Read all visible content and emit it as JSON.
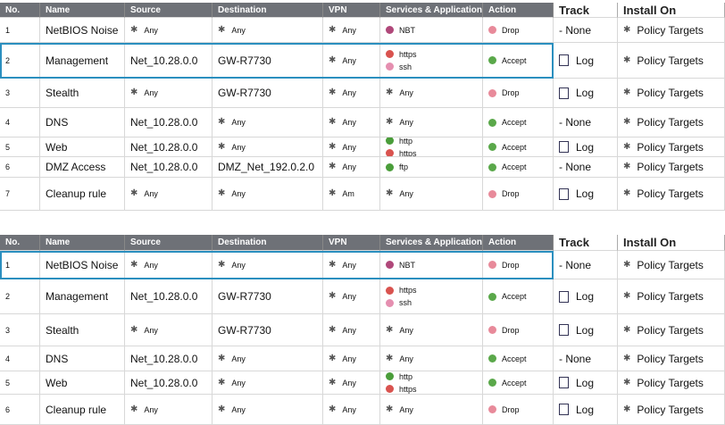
{
  "tables": [
    {
      "headers": [
        "No.",
        "Name",
        "Source",
        "Destination",
        "VPN",
        "Services & Applications",
        "Action",
        "Track",
        "Install On"
      ],
      "rows": [
        {
          "no": "1",
          "name": "NetBIOS Noise",
          "source": "Any",
          "destination": "Any",
          "vpn": "Any",
          "services": [
            "NBT"
          ],
          "action": "Drop",
          "track": "- None",
          "install_on": "Policy Targets"
        },
        {
          "no": "2",
          "name": "Management",
          "source": "Net_10.28.0.0",
          "destination": "GW-R7730",
          "vpn": "Any",
          "services": [
            "https",
            "ssh"
          ],
          "action": "Accept",
          "track": "Log",
          "install_on": "Policy Targets"
        },
        {
          "no": "3",
          "name": "Stealth",
          "source": "Any",
          "destination": "GW-R7730",
          "vpn": "Any",
          "services": [
            "Any"
          ],
          "action": "Drop",
          "track": "Log",
          "install_on": "Policy Targets"
        },
        {
          "no": "4",
          "name": "DNS",
          "source": "Net_10.28.0.0",
          "destination": "Any",
          "vpn": "Any",
          "services": [
            "Any"
          ],
          "action": "Accept",
          "track": "- None",
          "install_on": "Policy Targets"
        },
        {
          "no": "5",
          "name": "Web",
          "source": "Net_10.28.0.0",
          "destination": "Any",
          "vpn": "Any",
          "services": [
            "http",
            "https"
          ],
          "action": "Accept",
          "track": "Log",
          "install_on": "Policy Targets"
        },
        {
          "no": "6",
          "name": "DMZ Access",
          "source": "Net_10.28.0.0",
          "destination": "DMZ_Net_192.0.2.0",
          "vpn": "Any",
          "services": [
            "ftp"
          ],
          "action": "Accept",
          "track": "- None",
          "install_on": "Policy Targets"
        },
        {
          "no": "7",
          "name": "Cleanup rule",
          "source": "Any",
          "destination": "Any",
          "vpn": "Am",
          "services": [
            "Any"
          ],
          "action": "Drop",
          "track": "Log",
          "install_on": "Policy Targets"
        }
      ]
    },
    {
      "headers": [
        "No.",
        "Name",
        "Source",
        "Destination",
        "VPN",
        "Services & Applications",
        "Action",
        "Track",
        "Install On"
      ],
      "rows": [
        {
          "no": "1",
          "name": "NetBIOS Noise",
          "source": "Any",
          "destination": "Any",
          "vpn": "Any",
          "services": [
            "NBT"
          ],
          "action": "Drop",
          "track": "- None",
          "install_on": "Policy Targets"
        },
        {
          "no": "2",
          "name": "Management",
          "source": "Net_10.28.0.0",
          "destination": "GW-R7730",
          "vpn": "Any",
          "services": [
            "https",
            "ssh"
          ],
          "action": "Accept",
          "track": "Log",
          "install_on": "Policy Targets"
        },
        {
          "no": "3",
          "name": "Stealth",
          "source": "Any",
          "destination": "GW-R7730",
          "vpn": "Any",
          "services": [
            "Any"
          ],
          "action": "Drop",
          "track": "Log",
          "install_on": "Policy Targets"
        },
        {
          "no": "4",
          "name": "DNS",
          "source": "Net_10.28.0.0",
          "destination": "Any",
          "vpn": "Any",
          "services": [
            "Any"
          ],
          "action": "Accept",
          "track": "- None",
          "install_on": "Policy Targets"
        },
        {
          "no": "5",
          "name": "Web",
          "source": "Net_10.28.0.0",
          "destination": "Any",
          "vpn": "Any",
          "services": [
            "http",
            "https"
          ],
          "action": "Accept",
          "track": "Log",
          "install_on": "Policy Targets"
        },
        {
          "no": "6",
          "name": "Cleanup rule",
          "source": "Any",
          "destination": "Any",
          "vpn": "Any",
          "services": [
            "Any"
          ],
          "action": "Drop",
          "track": "Log",
          "install_on": "Policy Targets"
        }
      ]
    }
  ]
}
